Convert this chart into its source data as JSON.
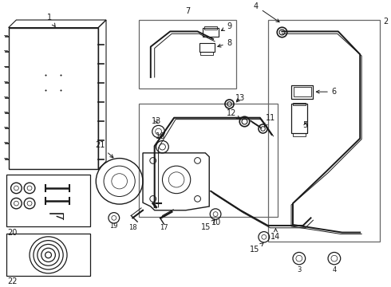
{
  "background": "#ffffff",
  "line_color": "#1a1a1a",
  "box_color": "#666666",
  "figsize": [
    4.9,
    3.6
  ],
  "dpi": 100
}
